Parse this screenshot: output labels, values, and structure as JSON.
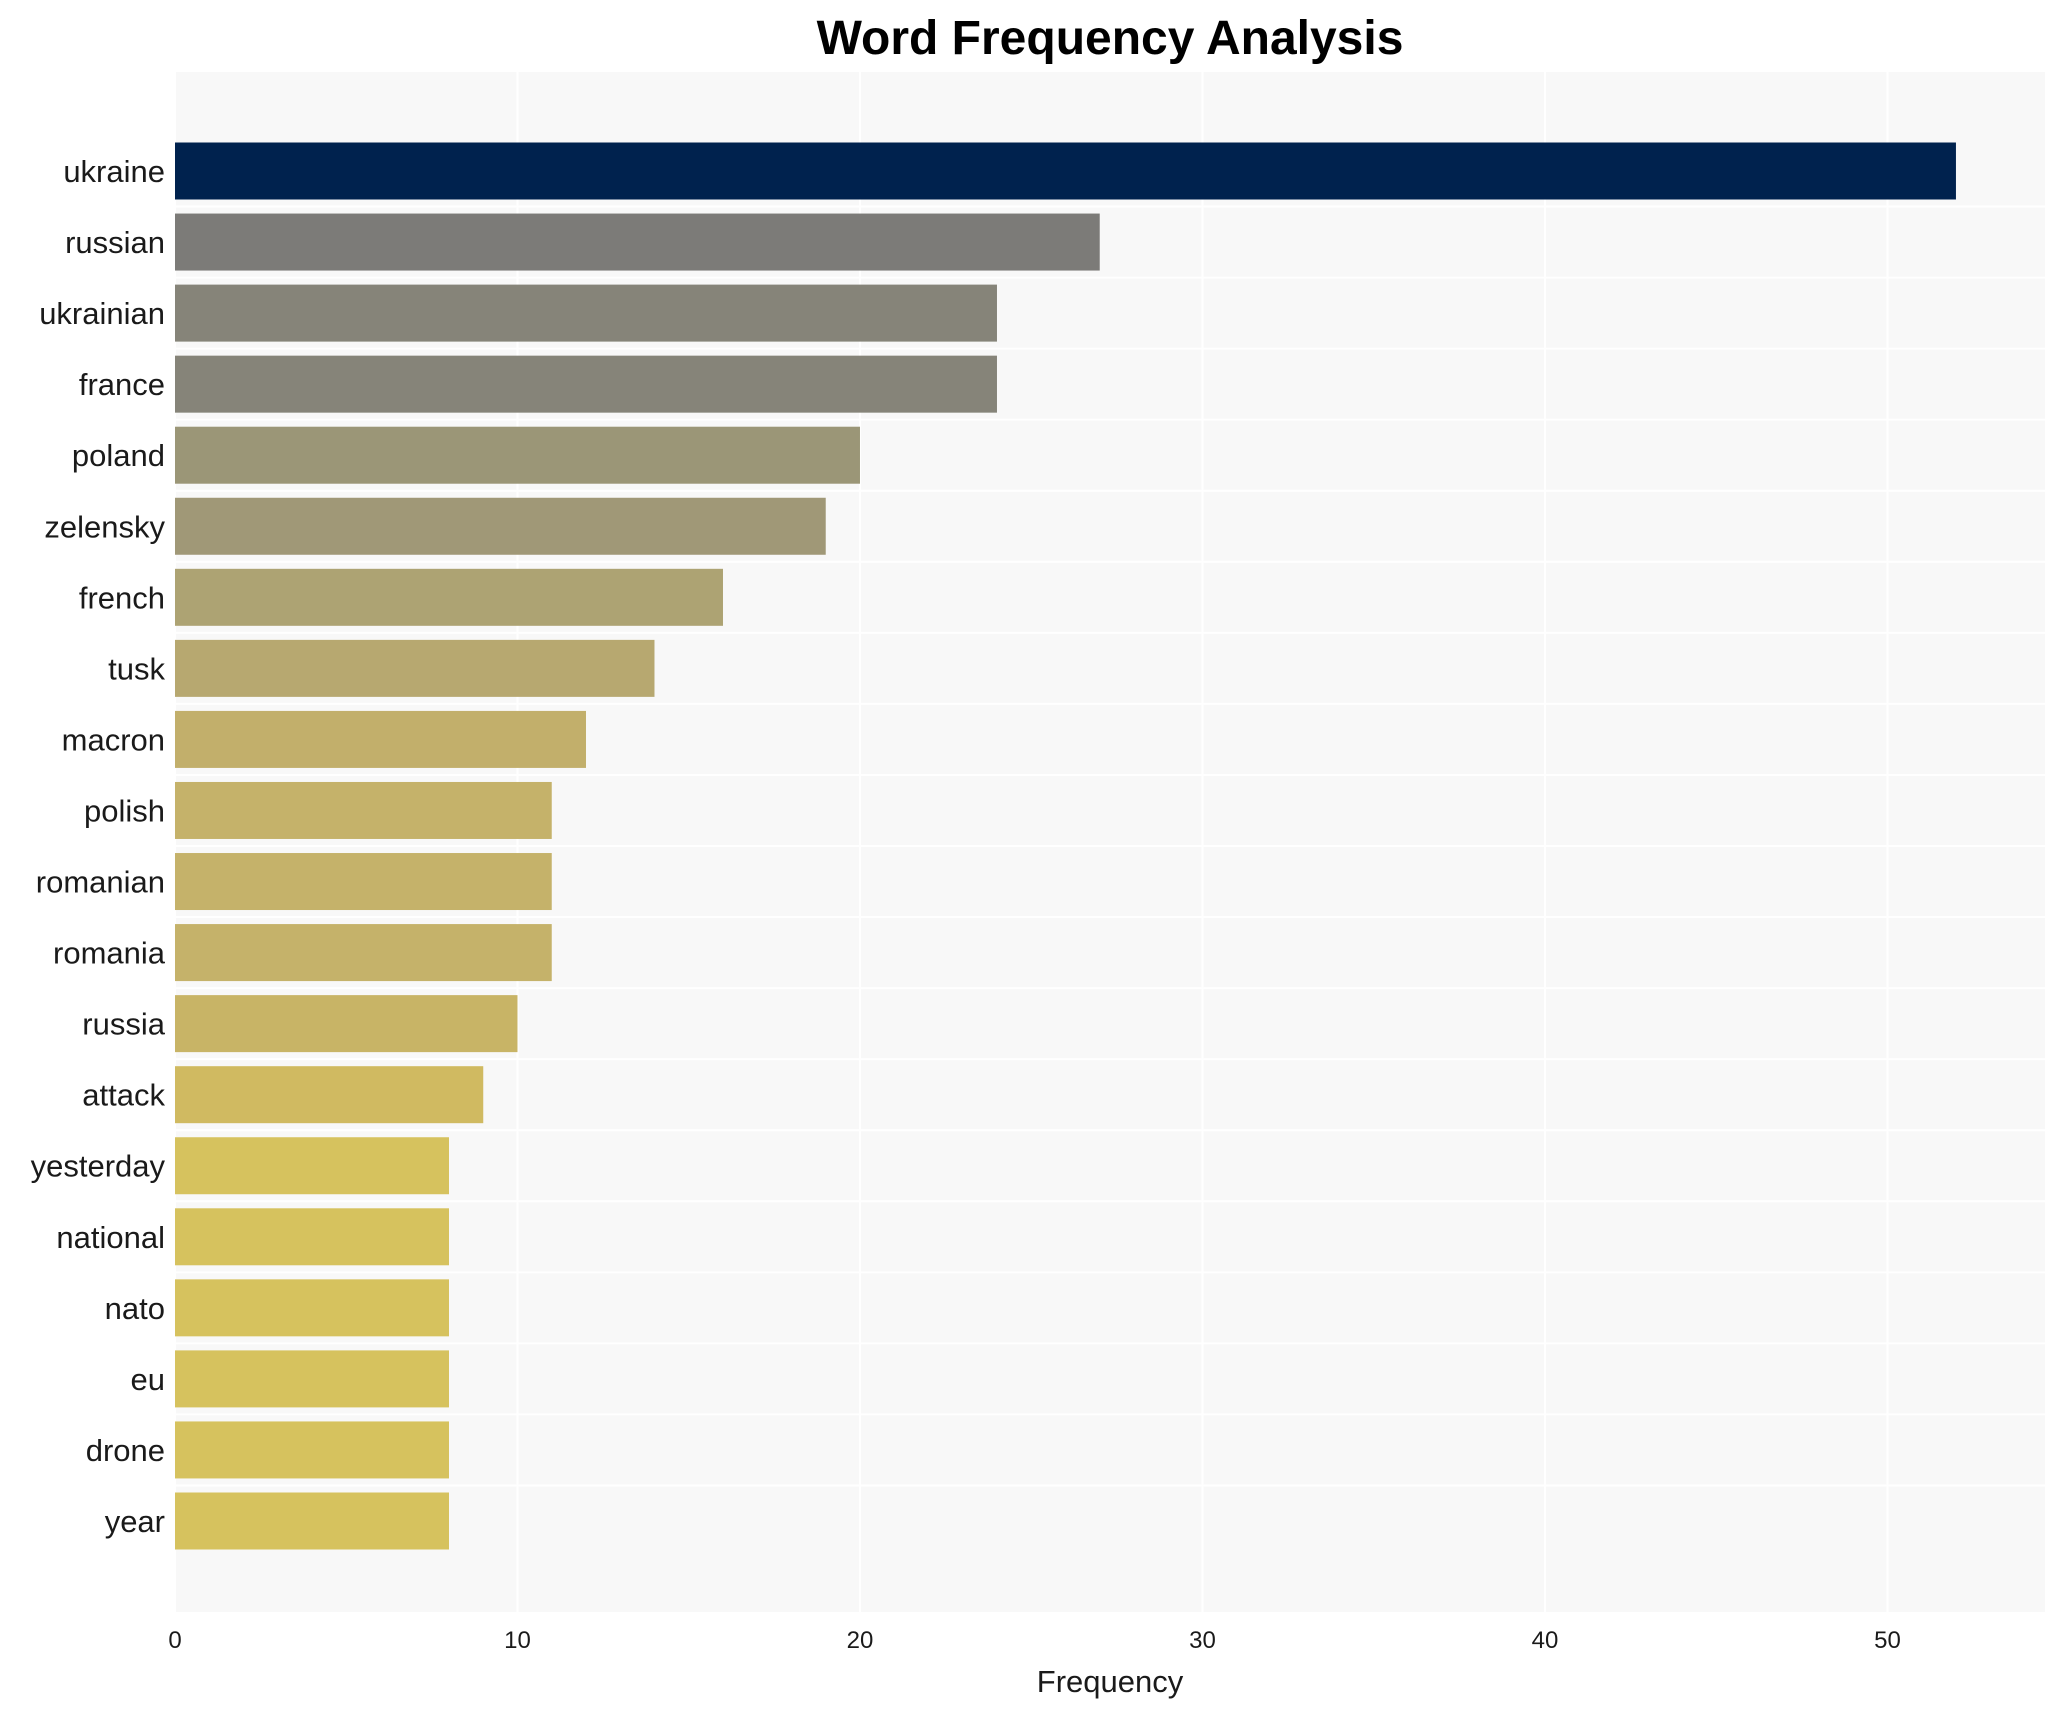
{
  "chart_data": {
    "type": "bar",
    "orientation": "horizontal",
    "title": "Word Frequency Analysis",
    "xlabel": "Frequency",
    "ylabel": "",
    "xlim": [
      0,
      54.6
    ],
    "xticks": [
      0,
      10,
      20,
      30,
      40,
      50
    ],
    "grid": true,
    "legend": "none",
    "categories": [
      "ukraine",
      "russian",
      "ukrainian",
      "france",
      "poland",
      "zelensky",
      "french",
      "tusk",
      "macron",
      "polish",
      "romanian",
      "romania",
      "russia",
      "attack",
      "yesterday",
      "national",
      "nato",
      "eu",
      "drone",
      "year"
    ],
    "values": [
      52,
      27,
      24,
      24,
      20,
      19,
      16,
      14,
      12,
      11,
      11,
      11,
      10,
      9,
      8,
      8,
      8,
      8,
      8,
      8
    ],
    "colors": [
      "#00224e",
      "#7c7b78",
      "#868479",
      "#868479",
      "#9b9677",
      "#a09877",
      "#ada373",
      "#b7a870",
      "#c2af6b",
      "#c5b26a",
      "#c5b26a",
      "#c5b26a",
      "#c8b466",
      "#d0ba61",
      "#d6c25e",
      "#d6c25e",
      "#d6c25e",
      "#d6c25e",
      "#d6c25e",
      "#d6c25e"
    ],
    "background_color": "#f8f8f8",
    "grid_color": "#ffffff"
  }
}
